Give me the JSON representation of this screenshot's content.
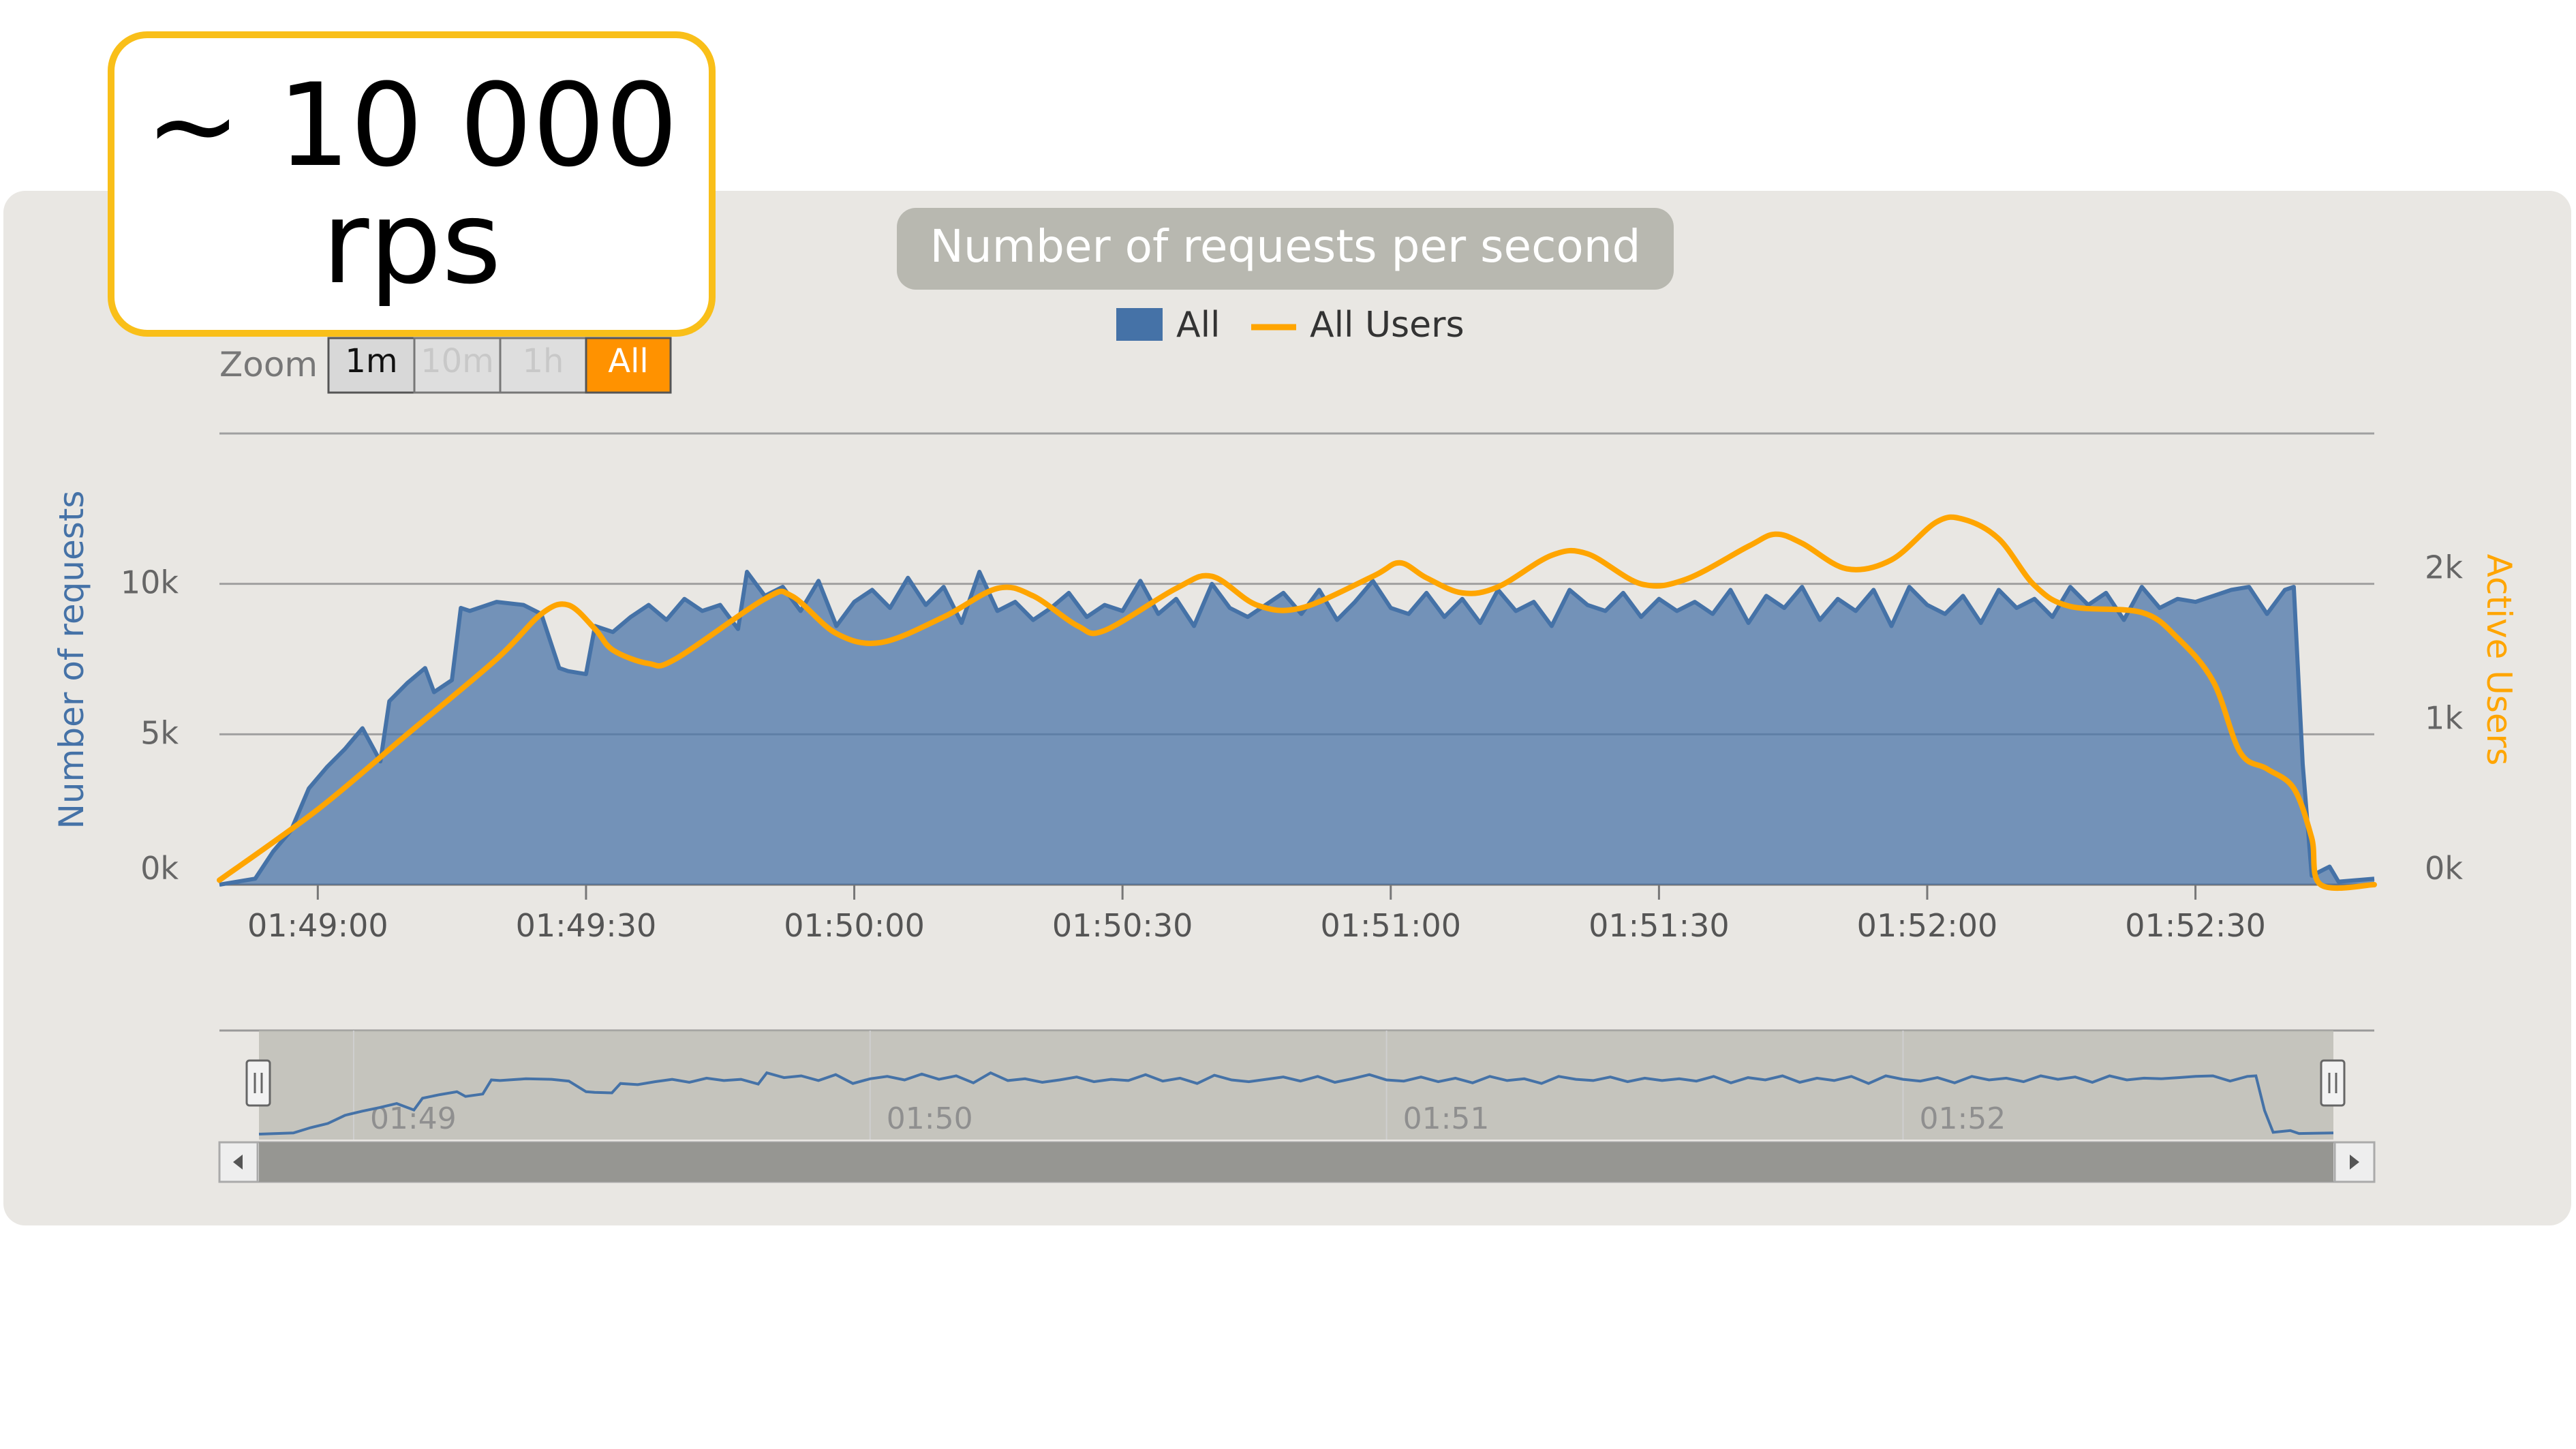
{
  "callout": {
    "line1": "~ 10 000",
    "line2": "rps"
  },
  "zoom": {
    "label": "Zoom",
    "buttons": [
      "1m",
      "10m",
      "1h",
      "All"
    ],
    "active": "All"
  },
  "colors": {
    "requests": "#4572a7",
    "users": "#ffa500",
    "panel": "#e9e7e3",
    "title_bg": "#b8b8b0",
    "callout_border": "#f9bf19",
    "zoom_active": "#ff9200"
  },
  "chart_data": {
    "type": "area",
    "title": "Number of requests per second",
    "legend": [
      "All",
      "All Users"
    ],
    "legend_position": "top-center",
    "grid": true,
    "x_tick_labels": [
      "01:49:00",
      "01:49:30",
      "01:50:00",
      "01:50:30",
      "01:51:00",
      "01:51:30",
      "01:52:00",
      "01:52:30"
    ],
    "x_range": [
      "01:48:49",
      "01:52:50"
    ],
    "y_left": {
      "label": "Number of requests",
      "ticks": [
        "0k",
        "5k",
        "10k"
      ],
      "range": [
        0,
        15000
      ]
    },
    "y_right": {
      "label": "Active Users",
      "ticks": [
        "0k",
        "1k",
        "2k"
      ],
      "range": [
        0,
        3000
      ]
    },
    "navigator": {
      "labels": [
        "01:49",
        "01:50",
        "01:51",
        "01:52"
      ]
    },
    "series": [
      {
        "name": "All",
        "axis": "left",
        "points": [
          [
            "01:48:49",
            0
          ],
          [
            "01:48:53",
            200
          ],
          [
            "01:48:55",
            1100
          ],
          [
            "01:48:57",
            1800
          ],
          [
            "01:48:59",
            3200
          ],
          [
            "01:49:01",
            3900
          ],
          [
            "01:49:03",
            4500
          ],
          [
            "01:49:05",
            5200
          ],
          [
            "01:49:07",
            4100
          ],
          [
            "01:49:08",
            6100
          ],
          [
            "01:49:10",
            6700
          ],
          [
            "01:49:12",
            7200
          ],
          [
            "01:49:13",
            6400
          ],
          [
            "01:49:15",
            6800
          ],
          [
            "01:49:16",
            9200
          ],
          [
            "01:49:17",
            9100
          ],
          [
            "01:49:20",
            9400
          ],
          [
            "01:49:23",
            9300
          ],
          [
            "01:49:25",
            9000
          ],
          [
            "01:49:27",
            7200
          ],
          [
            "01:49:28",
            7100
          ],
          [
            "01:49:30",
            7000
          ],
          [
            "01:49:31",
            8600
          ],
          [
            "01:49:33",
            8400
          ],
          [
            "01:49:35",
            8900
          ],
          [
            "01:49:37",
            9300
          ],
          [
            "01:49:39",
            8800
          ],
          [
            "01:49:41",
            9500
          ],
          [
            "01:49:43",
            9100
          ],
          [
            "01:49:45",
            9300
          ],
          [
            "01:49:47",
            8500
          ],
          [
            "01:49:48",
            10400
          ],
          [
            "01:49:50",
            9600
          ],
          [
            "01:49:52",
            9900
          ],
          [
            "01:49:54",
            9100
          ],
          [
            "01:49:56",
            10100
          ],
          [
            "01:49:58",
            8600
          ],
          [
            "01:50:00",
            9400
          ],
          [
            "01:50:02",
            9800
          ],
          [
            "01:50:04",
            9200
          ],
          [
            "01:50:06",
            10200
          ],
          [
            "01:50:08",
            9300
          ],
          [
            "01:50:10",
            9900
          ],
          [
            "01:50:12",
            8700
          ],
          [
            "01:50:14",
            10400
          ],
          [
            "01:50:16",
            9100
          ],
          [
            "01:50:18",
            9400
          ],
          [
            "01:50:20",
            8800
          ],
          [
            "01:50:22",
            9200
          ],
          [
            "01:50:24",
            9700
          ],
          [
            "01:50:26",
            8900
          ],
          [
            "01:50:28",
            9300
          ],
          [
            "01:50:30",
            9100
          ],
          [
            "01:50:32",
            10100
          ],
          [
            "01:50:34",
            9000
          ],
          [
            "01:50:36",
            9500
          ],
          [
            "01:50:38",
            8600
          ],
          [
            "01:50:40",
            10000
          ],
          [
            "01:50:42",
            9200
          ],
          [
            "01:50:44",
            8900
          ],
          [
            "01:50:46",
            9300
          ],
          [
            "01:50:48",
            9700
          ],
          [
            "01:50:50",
            9000
          ],
          [
            "01:50:52",
            9800
          ],
          [
            "01:50:54",
            8800
          ],
          [
            "01:50:56",
            9400
          ],
          [
            "01:50:58",
            10100
          ],
          [
            "01:51:00",
            9200
          ],
          [
            "01:51:02",
            9000
          ],
          [
            "01:51:04",
            9700
          ],
          [
            "01:51:06",
            8900
          ],
          [
            "01:51:08",
            9500
          ],
          [
            "01:51:10",
            8700
          ],
          [
            "01:51:12",
            9800
          ],
          [
            "01:51:14",
            9100
          ],
          [
            "01:51:16",
            9400
          ],
          [
            "01:51:18",
            8600
          ],
          [
            "01:51:20",
            9800
          ],
          [
            "01:51:22",
            9300
          ],
          [
            "01:51:24",
            9100
          ],
          [
            "01:51:26",
            9700
          ],
          [
            "01:51:28",
            8900
          ],
          [
            "01:51:30",
            9500
          ],
          [
            "01:51:32",
            9100
          ],
          [
            "01:51:34",
            9400
          ],
          [
            "01:51:36",
            9000
          ],
          [
            "01:51:38",
            9800
          ],
          [
            "01:51:40",
            8700
          ],
          [
            "01:51:42",
            9600
          ],
          [
            "01:51:44",
            9200
          ],
          [
            "01:51:46",
            9900
          ],
          [
            "01:51:48",
            8800
          ],
          [
            "01:51:50",
            9500
          ],
          [
            "01:51:52",
            9100
          ],
          [
            "01:51:54",
            9800
          ],
          [
            "01:51:56",
            8600
          ],
          [
            "01:51:58",
            9900
          ],
          [
            "01:52:00",
            9300
          ],
          [
            "01:52:02",
            9000
          ],
          [
            "01:52:04",
            9600
          ],
          [
            "01:52:06",
            8700
          ],
          [
            "01:52:08",
            9800
          ],
          [
            "01:52:10",
            9200
          ],
          [
            "01:52:12",
            9500
          ],
          [
            "01:52:14",
            8900
          ],
          [
            "01:52:16",
            9900
          ],
          [
            "01:52:18",
            9300
          ],
          [
            "01:52:20",
            9700
          ],
          [
            "01:52:22",
            8800
          ],
          [
            "01:52:24",
            9900
          ],
          [
            "01:52:26",
            9200
          ],
          [
            "01:52:28",
            9500
          ],
          [
            "01:52:30",
            9400
          ],
          [
            "01:52:32",
            9600
          ],
          [
            "01:52:34",
            9800
          ],
          [
            "01:52:36",
            9900
          ],
          [
            "01:52:38",
            9000
          ],
          [
            "01:52:40",
            9800
          ],
          [
            "01:52:41",
            9900
          ],
          [
            "01:52:42",
            4000
          ],
          [
            "01:52:43",
            300
          ],
          [
            "01:52:45",
            600
          ],
          [
            "01:52:46",
            100
          ],
          [
            "01:52:50",
            200
          ]
        ]
      },
      {
        "name": "All Users",
        "axis": "right",
        "points": [
          [
            "01:48:49",
            30
          ],
          [
            "01:49:00",
            500
          ],
          [
            "01:49:10",
            1000
          ],
          [
            "01:49:20",
            1500
          ],
          [
            "01:49:25",
            1800
          ],
          [
            "01:49:28",
            1860
          ],
          [
            "01:49:31",
            1700
          ],
          [
            "01:49:33",
            1560
          ],
          [
            "01:49:37",
            1470
          ],
          [
            "01:49:40",
            1500
          ],
          [
            "01:49:50",
            1900
          ],
          [
            "01:49:53",
            1920
          ],
          [
            "01:49:58",
            1670
          ],
          [
            "01:50:03",
            1610
          ],
          [
            "01:50:10",
            1780
          ],
          [
            "01:50:16",
            1970
          ],
          [
            "01:50:20",
            1920
          ],
          [
            "01:50:25",
            1720
          ],
          [
            "01:50:28",
            1690
          ],
          [
            "01:50:36",
            1970
          ],
          [
            "01:50:40",
            2050
          ],
          [
            "01:50:45",
            1860
          ],
          [
            "01:50:50",
            1840
          ],
          [
            "01:50:58",
            2050
          ],
          [
            "01:51:01",
            2140
          ],
          [
            "01:51:04",
            2040
          ],
          [
            "01:51:08",
            1940
          ],
          [
            "01:51:12",
            1980
          ],
          [
            "01:51:18",
            2190
          ],
          [
            "01:51:22",
            2200
          ],
          [
            "01:51:28",
            2000
          ],
          [
            "01:51:33",
            2030
          ],
          [
            "01:51:40",
            2250
          ],
          [
            "01:51:43",
            2330
          ],
          [
            "01:51:46",
            2270
          ],
          [
            "01:51:51",
            2100
          ],
          [
            "01:51:56",
            2160
          ],
          [
            "01:52:01",
            2410
          ],
          [
            "01:52:04",
            2430
          ],
          [
            "01:52:08",
            2300
          ],
          [
            "01:52:12",
            1990
          ],
          [
            "01:52:16",
            1850
          ],
          [
            "01:52:24",
            1810
          ],
          [
            "01:52:28",
            1640
          ],
          [
            "01:52:32",
            1350
          ],
          [
            "01:52:35",
            880
          ],
          [
            "01:52:38",
            770
          ],
          [
            "01:52:41",
            640
          ],
          [
            "01:52:43",
            310
          ],
          [
            "01:52:44",
            0
          ],
          [
            "01:52:50",
            0
          ]
        ]
      }
    ]
  }
}
